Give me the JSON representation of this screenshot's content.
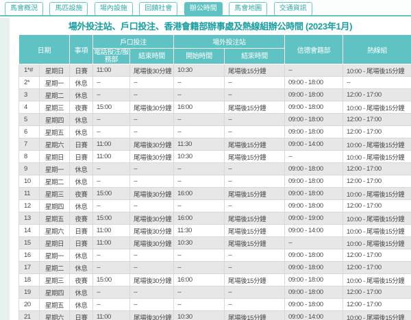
{
  "tabs": [
    {
      "label": "馬會概況",
      "active": false
    },
    {
      "label": "馬匹設施",
      "active": false
    },
    {
      "label": "場內設施",
      "active": false
    },
    {
      "label": "回饋社會",
      "active": false
    },
    {
      "label": "辦公時間",
      "active": true
    },
    {
      "label": "馬會地圖",
      "active": false
    },
    {
      "label": "交通資訊",
      "active": false
    }
  ],
  "title": "場外投注站、戶口投注、香港會籍部辦事處及熱線組辦公時間 (2023年1月)",
  "table": {
    "group_headers": {
      "date": "日期",
      "item": "事項",
      "account_betting": "戶口投注",
      "offcourse_betting": "場外投注站",
      "membership": "信德會籍部",
      "hotline": "熱線組"
    },
    "sub_headers": {
      "phone_betting": "電話投注/服務部",
      "account_end": "結束時間",
      "otb_start": "開始時間",
      "otb_end": "結束時間"
    },
    "rows": [
      [
        "1*#",
        "星期日",
        "日賽",
        "11:00",
        "尾場後30分鐘",
        "10:30",
        "尾場後15分鐘",
        "--",
        "10:00 - 尾場後15分鐘"
      ],
      [
        "2*",
        "星期一",
        "休息",
        "--",
        "--",
        "--",
        "--",
        "09:00 - 18:00",
        "--"
      ],
      [
        "3",
        "星期二",
        "休息",
        "--",
        "--",
        "--",
        "--",
        "09:00 - 18:00",
        "12:00 - 17:00"
      ],
      [
        "4",
        "星期三",
        "夜賽",
        "15:00",
        "尾場後30分鐘",
        "16:00",
        "尾場後15分鐘",
        "09:00 - 18:00",
        "10:00 - 尾場後15分鐘"
      ],
      [
        "5",
        "星期四",
        "休息",
        "--",
        "--",
        "--",
        "--",
        "09:00 - 18:00",
        "12:00 - 17:00"
      ],
      [
        "6",
        "星期五",
        "休息",
        "--",
        "--",
        "--",
        "--",
        "09:00 - 18:00",
        "12:00 - 17:00"
      ],
      [
        "7",
        "星期六",
        "日賽",
        "11:00",
        "尾場後30分鐘",
        "11:30",
        "尾場後15分鐘",
        "09:00 - 14:00",
        "10:00 - 尾場後15分鐘"
      ],
      [
        "8",
        "星期日",
        "日賽",
        "11:00",
        "尾場後30分鐘",
        "10:30",
        "尾場後15分鐘",
        "--",
        "10:00 - 尾場後15分鐘"
      ],
      [
        "9",
        "星期一",
        "休息",
        "--",
        "--",
        "--",
        "--",
        "09:00 - 18:00",
        "12:00 - 17:00"
      ],
      [
        "10",
        "星期二",
        "休息",
        "--",
        "--",
        "--",
        "--",
        "09:00 - 18:00",
        "12:00 - 17:00"
      ],
      [
        "11",
        "星期三",
        "夜賽",
        "15:00",
        "尾場後30分鐘",
        "16:00",
        "尾場後15分鐘",
        "09:00 - 18:00",
        "10:00 - 尾場後15分鐘"
      ],
      [
        "12",
        "星期四",
        "休息",
        "--",
        "--",
        "--",
        "--",
        "09:00 - 18:00",
        "12:00 - 17:00"
      ],
      [
        "13",
        "星期五",
        "夜賽",
        "15:00",
        "尾場後30分鐘",
        "16:00",
        "尾場後15分鐘",
        "09:00 - 19:00",
        "10:00 - 尾場後15分鐘"
      ],
      [
        "14",
        "星期六",
        "日賽",
        "11:00",
        "尾場後30分鐘",
        "11:30",
        "尾場後15分鐘",
        "09:00 - 14:00",
        "10:00 - 尾場後15分鐘"
      ],
      [
        "15",
        "星期日",
        "日賽",
        "11:00",
        "尾場後30分鐘",
        "10:30",
        "尾場後15分鐘",
        "--",
        "10:00 - 尾場後15分鐘"
      ],
      [
        "16",
        "星期一",
        "休息",
        "--",
        "--",
        "--",
        "--",
        "09:00 - 18:00",
        "12:00 - 17:00"
      ],
      [
        "17",
        "星期二",
        "休息",
        "--",
        "--",
        "--",
        "--",
        "09:00 - 18:00",
        "12:00 - 17:00"
      ],
      [
        "18",
        "星期三",
        "夜賽",
        "15:00",
        "尾場後30分鐘",
        "16:00",
        "尾場後15分鐘",
        "09:00 - 18:00",
        "10:00 - 尾場後15分鐘"
      ],
      [
        "19",
        "星期四",
        "休息",
        "--",
        "--",
        "--",
        "--",
        "09:00 - 18:00",
        "12:00 - 17:00"
      ],
      [
        "20",
        "星期五",
        "休息",
        "--",
        "--",
        "--",
        "--",
        "09:00 - 18:00",
        "12:00 - 17:00"
      ],
      [
        "21",
        "星期六",
        "日賽",
        "11:00",
        "尾場後30分鐘",
        "10:30",
        "尾場後15分鐘",
        "09:00 - 14:00",
        "10:00 - 尾場後15分鐘"
      ]
    ]
  },
  "colors": {
    "teal_accent": "#5fc2c3",
    "title_teal": "#189ea0",
    "tab_text": "#35a9a9",
    "row_stripe": "#e7e7e7",
    "cell_text": "#4a4a4a",
    "left_strip": "#e7f2ef"
  }
}
